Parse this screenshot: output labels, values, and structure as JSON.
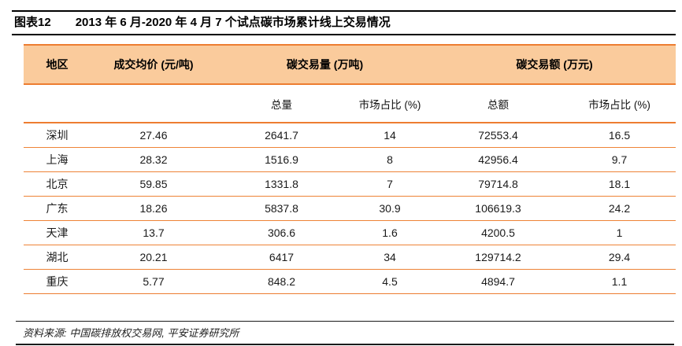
{
  "figure": {
    "label": "图表12",
    "title": "2013 年 6 月-2020 年 4 月 7 个试点碳市场累计线上交易情况"
  },
  "table": {
    "headers": {
      "region": "地区",
      "avg_price": "成交均价 (元/吨)",
      "volume_group": "碳交易量 (万吨)",
      "amount_group": "碳交易额 (万元)",
      "volume_total": "总量",
      "volume_share": "市场占比 (%)",
      "amount_total": "总额",
      "amount_share": "市场占比 (%)"
    },
    "rows": [
      {
        "region": "深圳",
        "avg_price": "27.46",
        "volume_total": "2641.7",
        "volume_share": "14",
        "amount_total": "72553.4",
        "amount_share": "16.5"
      },
      {
        "region": "上海",
        "avg_price": "28.32",
        "volume_total": "1516.9",
        "volume_share": "8",
        "amount_total": "42956.4",
        "amount_share": "9.7"
      },
      {
        "region": "北京",
        "avg_price": "59.85",
        "volume_total": "1331.8",
        "volume_share": "7",
        "amount_total": "79714.8",
        "amount_share": "18.1"
      },
      {
        "region": "广东",
        "avg_price": "18.26",
        "volume_total": "5837.8",
        "volume_share": "30.9",
        "amount_total": "106619.3",
        "amount_share": "24.2"
      },
      {
        "region": "天津",
        "avg_price": "13.7",
        "volume_total": "306.6",
        "volume_share": "1.6",
        "amount_total": "4200.5",
        "amount_share": "1"
      },
      {
        "region": "湖北",
        "avg_price": "20.21",
        "volume_total": "6417",
        "volume_share": "34",
        "amount_total": "129714.2",
        "amount_share": "29.4"
      },
      {
        "region": "重庆",
        "avg_price": "5.77",
        "volume_total": "848.2",
        "volume_share": "4.5",
        "amount_total": "4894.7",
        "amount_share": "1.1"
      }
    ]
  },
  "footer": {
    "source": "资料来源: 中国碳排放权交易网,  平安证券研究所"
  },
  "colors": {
    "header_band": "#FACB9C",
    "orange_line": "#ED7D31",
    "rule_black": "#000000"
  }
}
